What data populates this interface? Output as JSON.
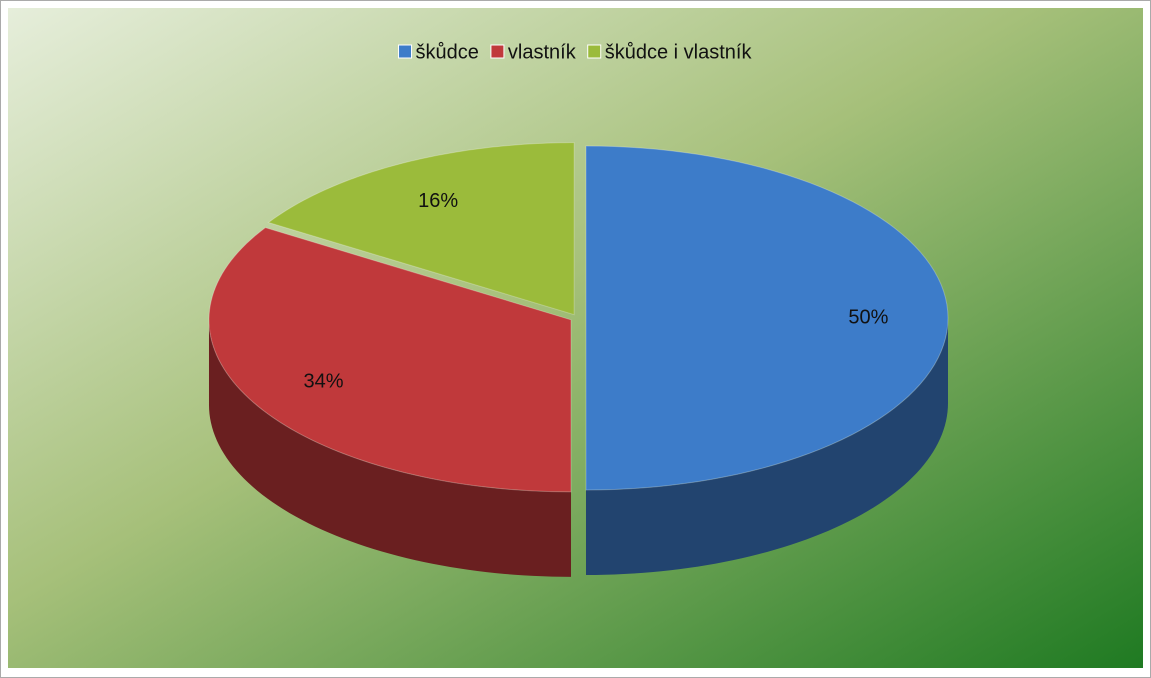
{
  "chart_data": {
    "type": "pie",
    "categories": [
      "škůdce",
      "vlastník",
      "škůdce i vlastník"
    ],
    "values": [
      50,
      34,
      16
    ],
    "value_labels": [
      "50%",
      "34%",
      "16%"
    ],
    "colors": [
      "#3d7cc9",
      "#c0393b",
      "#9bbb3b"
    ],
    "legend": "top"
  }
}
